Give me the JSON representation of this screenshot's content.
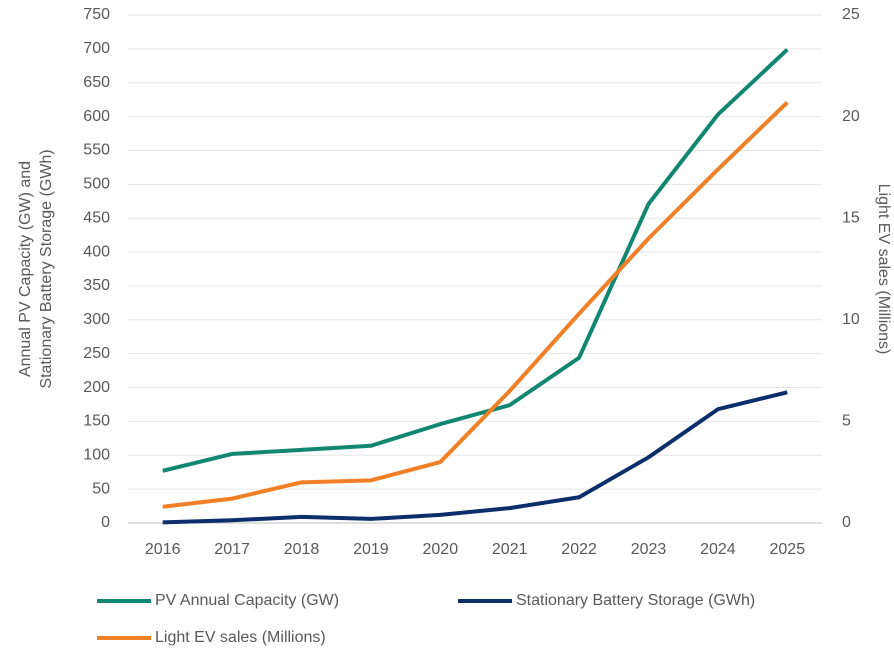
{
  "chart_data": {
    "type": "line",
    "ylabel": [
      "Annual PV Capacity (GW) and",
      "Stationary Battery Storage (GWh)"
    ],
    "y2label": "Light EV sales (Millions)",
    "categories": [
      "2016",
      "2017",
      "2018",
      "2019",
      "2020",
      "2021",
      "2022",
      "2023",
      "2024",
      "2025"
    ],
    "series": [
      {
        "name": "PV  Annual Capacity (GW)",
        "color": "#12876f",
        "values": [
          77,
          102,
          108,
          114,
          146,
          174,
          244,
          471,
          603,
          699
        ]
      },
      {
        "name": "Stationary Battery Storage (GWh)",
        "color": "#0c2f6b",
        "values": [
          1,
          4,
          9,
          6,
          12,
          22,
          38,
          97,
          168,
          193
        ]
      },
      {
        "name": "Light EV sales (Millions)",
        "color": "#f07f25",
        "axis": "y2",
        "values": [
          0.8,
          1.2,
          2.0,
          2.1,
          3.0,
          6.5,
          10.3,
          14.0,
          17.4,
          20.7
        ]
      }
    ],
    "ylim": [
      0,
      750
    ],
    "yticks": [
      0,
      50,
      100,
      150,
      200,
      250,
      300,
      350,
      400,
      450,
      500,
      550,
      600,
      650,
      700,
      750
    ],
    "y2lim": [
      0,
      25
    ],
    "y2ticks": [
      0,
      5,
      10,
      15,
      20,
      25
    ],
    "grid": true
  }
}
